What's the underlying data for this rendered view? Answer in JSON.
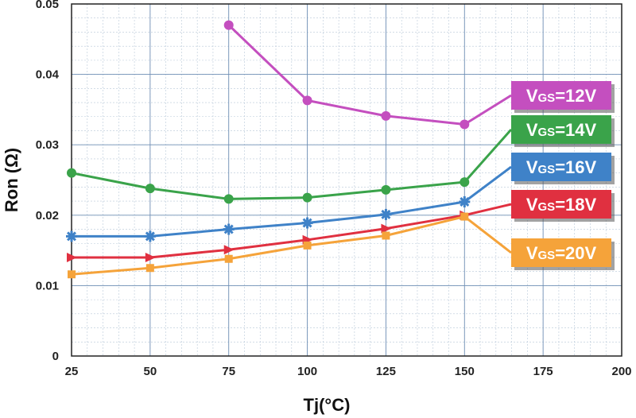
{
  "chart_data": {
    "type": "line",
    "title": "",
    "xlabel": "Tj(°C)",
    "ylabel": "Ron (Ω)",
    "xlim": [
      25,
      200
    ],
    "ylim": [
      0,
      0.05
    ],
    "x_ticks": [
      25,
      50,
      75,
      100,
      125,
      150,
      175,
      200
    ],
    "x_tick_labels": [
      "25",
      "50",
      "75",
      "100",
      "125",
      "150",
      "175",
      "200"
    ],
    "y_ticks": [
      0,
      0.01,
      0.02,
      0.03,
      0.04,
      0.05
    ],
    "y_tick_labels": [
      "0",
      "0.01",
      "0.02",
      "0.03",
      "0.04",
      "0.05"
    ],
    "grid": true,
    "legend_position": "right",
    "series": [
      {
        "name": "VGS=12V",
        "label_main": "V",
        "label_sub": "GS",
        "label_rest": "=12V",
        "color": "#c44fbf",
        "marker": "circle",
        "x": [
          75,
          100,
          125,
          150
        ],
        "values": [
          0.047,
          0.0363,
          0.0341,
          0.0329
        ]
      },
      {
        "name": "VGS=14V",
        "label_main": "V",
        "label_sub": "GS",
        "label_rest": "=14V",
        "color": "#3aa34a",
        "marker": "circle",
        "x": [
          25,
          50,
          75,
          100,
          125,
          150
        ],
        "values": [
          0.026,
          0.0238,
          0.0223,
          0.0225,
          0.0236,
          0.0247
        ]
      },
      {
        "name": "VGS=16V",
        "label_main": "V",
        "label_sub": "GS",
        "label_rest": "=16V",
        "color": "#3f82c8",
        "marker": "star",
        "x": [
          25,
          50,
          75,
          100,
          125,
          150
        ],
        "values": [
          0.017,
          0.017,
          0.018,
          0.0189,
          0.0201,
          0.0219
        ]
      },
      {
        "name": "VGS=18V",
        "label_main": "V",
        "label_sub": "GS",
        "label_rest": "=18V",
        "color": "#e03040",
        "marker": "triangle",
        "x": [
          25,
          50,
          75,
          100,
          125,
          150
        ],
        "values": [
          0.014,
          0.014,
          0.0151,
          0.0165,
          0.0181,
          0.02
        ]
      },
      {
        "name": "VGS=20V",
        "label_main": "V",
        "label_sub": "GS",
        "label_rest": "=20V",
        "color": "#f5a33a",
        "marker": "square",
        "x": [
          25,
          50,
          75,
          100,
          125,
          150
        ],
        "values": [
          0.0116,
          0.0125,
          0.0138,
          0.0157,
          0.0171,
          0.0198
        ]
      }
    ]
  }
}
